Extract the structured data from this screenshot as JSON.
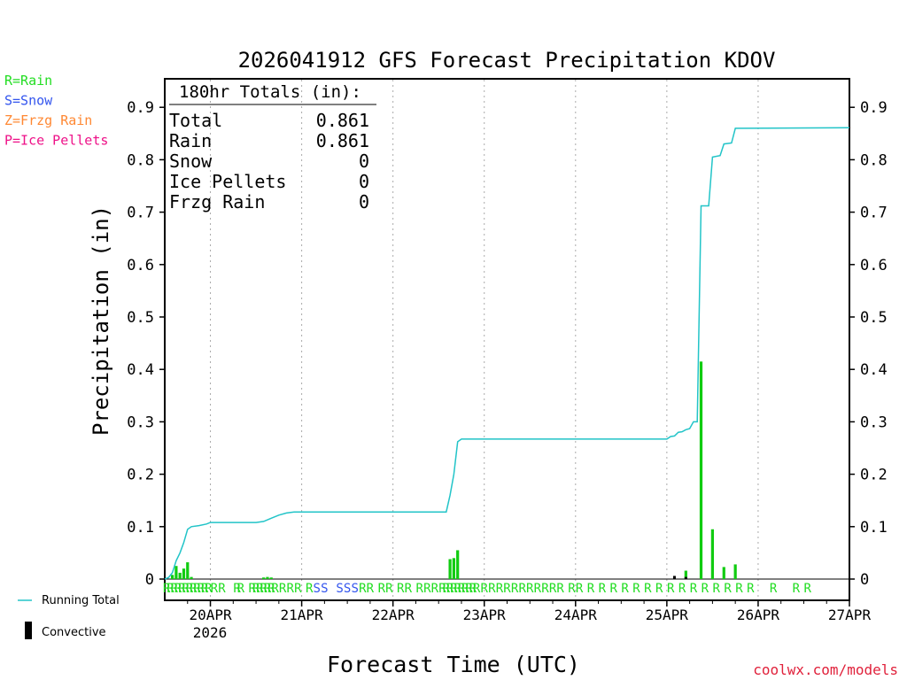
{
  "chart_data": {
    "type": "bar",
    "title": "2026041912 GFS Forecast Precipitation KDOV",
    "ylabel": "Precipitation (in)",
    "xlabel": "Forecast Time (UTC)",
    "ylim": [
      0,
      0.95
    ],
    "y_ticks": [
      "0",
      "0.1",
      "0.2",
      "0.3",
      "0.4",
      "0.5",
      "0.6",
      "0.7",
      "0.8",
      "0.9"
    ],
    "x_range_hours": [
      0,
      180
    ],
    "x_ticks": [
      {
        "label": "20APR",
        "hour": 12
      },
      {
        "label": "21APR",
        "hour": 36
      },
      {
        "label": "22APR",
        "hour": 60
      },
      {
        "label": "23APR",
        "hour": 84
      },
      {
        "label": "24APR",
        "hour": 108
      },
      {
        "label": "25APR",
        "hour": 132
      },
      {
        "label": "26APR",
        "hour": 156
      },
      {
        "label": "27APR",
        "hour": 180
      }
    ],
    "year_label": "2026",
    "type_legend": [
      {
        "text": "R=Rain",
        "color": "#22dd22"
      },
      {
        "text": "S=Snow",
        "color": "#3355ee"
      },
      {
        "text": "Z=Frzg Rain",
        "color": "#ff8833"
      },
      {
        "text": "P=Ice Pellets",
        "color": "#ee1188"
      }
    ],
    "series_legend": {
      "running_total": "Running Total",
      "convective": "Convective"
    },
    "totals_box": {
      "heading": "180hr Totals (in):",
      "rows": [
        {
          "label": "Total",
          "value": "0.861"
        },
        {
          "label": "Rain",
          "value": "0.861"
        },
        {
          "label": "Snow",
          "value": "0"
        },
        {
          "label": "Ice Pellets",
          "value": "0"
        },
        {
          "label": "Frzg Rain",
          "value": "0"
        }
      ]
    },
    "precip_bars": [
      {
        "hour": 2,
        "value": 0.008
      },
      {
        "hour": 3,
        "value": 0.025
      },
      {
        "hour": 4,
        "value": 0.012
      },
      {
        "hour": 5,
        "value": 0.02
      },
      {
        "hour": 6,
        "value": 0.032
      },
      {
        "hour": 7,
        "value": 0.004
      },
      {
        "hour": 26,
        "value": 0.003
      },
      {
        "hour": 27,
        "value": 0.004
      },
      {
        "hour": 28,
        "value": 0.003
      },
      {
        "hour": 75,
        "value": 0.038
      },
      {
        "hour": 76,
        "value": 0.04
      },
      {
        "hour": 77,
        "value": 0.055
      },
      {
        "hour": 137,
        "value": 0.016
      },
      {
        "hour": 141,
        "value": 0.415
      },
      {
        "hour": 144,
        "value": 0.095
      },
      {
        "hour": 147,
        "value": 0.023
      },
      {
        "hour": 150,
        "value": 0.028
      }
    ],
    "convective_bars": [
      {
        "hour": 134,
        "value": 0.006
      },
      {
        "hour": 137,
        "value": 0.004
      }
    ],
    "running_total": [
      [
        0,
        0
      ],
      [
        1,
        0.003
      ],
      [
        2,
        0.012
      ],
      [
        3,
        0.035
      ],
      [
        4,
        0.05
      ],
      [
        5,
        0.07
      ],
      [
        6,
        0.095
      ],
      [
        7,
        0.1
      ],
      [
        9,
        0.102
      ],
      [
        11,
        0.105
      ],
      [
        12,
        0.108
      ],
      [
        24,
        0.108
      ],
      [
        26,
        0.11
      ],
      [
        28,
        0.116
      ],
      [
        30,
        0.122
      ],
      [
        32,
        0.126
      ],
      [
        34,
        0.128
      ],
      [
        36,
        0.128
      ],
      [
        74,
        0.128
      ],
      [
        75,
        0.16
      ],
      [
        76,
        0.2
      ],
      [
        77,
        0.262
      ],
      [
        78,
        0.267
      ],
      [
        132,
        0.267
      ],
      [
        133,
        0.272
      ],
      [
        134,
        0.273
      ],
      [
        135,
        0.28
      ],
      [
        136,
        0.281
      ],
      [
        137,
        0.285
      ],
      [
        138,
        0.287
      ],
      [
        139,
        0.3
      ],
      [
        140,
        0.3
      ],
      [
        141,
        0.712
      ],
      [
        143,
        0.712
      ],
      [
        144,
        0.805
      ],
      [
        146,
        0.808
      ],
      [
        147,
        0.83
      ],
      [
        149,
        0.832
      ],
      [
        150,
        0.86
      ],
      [
        152,
        0.86
      ],
      [
        180,
        0.861
      ]
    ],
    "type_markers": [
      {
        "hour": 0.5,
        "code": "R"
      },
      {
        "hour": 1.5,
        "code": "R"
      },
      {
        "hour": 2.5,
        "code": "R"
      },
      {
        "hour": 3.5,
        "code": "R"
      },
      {
        "hour": 4.5,
        "code": "R"
      },
      {
        "hour": 5.5,
        "code": "R"
      },
      {
        "hour": 6.5,
        "code": "R"
      },
      {
        "hour": 7.5,
        "code": "R"
      },
      {
        "hour": 8.5,
        "code": "R"
      },
      {
        "hour": 9.5,
        "code": "R"
      },
      {
        "hour": 10.5,
        "code": "R"
      },
      {
        "hour": 11.5,
        "code": "R"
      },
      {
        "hour": 13,
        "code": "R"
      },
      {
        "hour": 15,
        "code": "R"
      },
      {
        "hour": 19,
        "code": "R"
      },
      {
        "hour": 20,
        "code": "R"
      },
      {
        "hour": 23,
        "code": "R"
      },
      {
        "hour": 24,
        "code": "R"
      },
      {
        "hour": 25,
        "code": "R"
      },
      {
        "hour": 26,
        "code": "R"
      },
      {
        "hour": 27,
        "code": "R"
      },
      {
        "hour": 28,
        "code": "R"
      },
      {
        "hour": 29,
        "code": "R"
      },
      {
        "hour": 31,
        "code": "R"
      },
      {
        "hour": 33,
        "code": "R"
      },
      {
        "hour": 35,
        "code": "R"
      },
      {
        "hour": 38,
        "code": "R"
      },
      {
        "hour": 40,
        "code": "S"
      },
      {
        "hour": 42,
        "code": "S"
      },
      {
        "hour": 46,
        "code": "S"
      },
      {
        "hour": 48,
        "code": "S"
      },
      {
        "hour": 50,
        "code": "S"
      },
      {
        "hour": 52,
        "code": "R"
      },
      {
        "hour": 54,
        "code": "R"
      },
      {
        "hour": 57,
        "code": "R"
      },
      {
        "hour": 59,
        "code": "R"
      },
      {
        "hour": 62,
        "code": "R"
      },
      {
        "hour": 64,
        "code": "R"
      },
      {
        "hour": 67,
        "code": "R"
      },
      {
        "hour": 69,
        "code": "R"
      },
      {
        "hour": 71,
        "code": "R"
      },
      {
        "hour": 73,
        "code": "R"
      },
      {
        "hour": 74,
        "code": "R"
      },
      {
        "hour": 75,
        "code": "R"
      },
      {
        "hour": 76,
        "code": "R"
      },
      {
        "hour": 77,
        "code": "R"
      },
      {
        "hour": 78,
        "code": "R"
      },
      {
        "hour": 79,
        "code": "R"
      },
      {
        "hour": 80,
        "code": "R"
      },
      {
        "hour": 81,
        "code": "R"
      },
      {
        "hour": 82,
        "code": "R"
      },
      {
        "hour": 84,
        "code": "R"
      },
      {
        "hour": 86,
        "code": "R"
      },
      {
        "hour": 88,
        "code": "R"
      },
      {
        "hour": 90,
        "code": "R"
      },
      {
        "hour": 92,
        "code": "R"
      },
      {
        "hour": 94,
        "code": "R"
      },
      {
        "hour": 96,
        "code": "R"
      },
      {
        "hour": 98,
        "code": "R"
      },
      {
        "hour": 100,
        "code": "R"
      },
      {
        "hour": 102,
        "code": "R"
      },
      {
        "hour": 104,
        "code": "R"
      },
      {
        "hour": 107,
        "code": "R"
      },
      {
        "hour": 109,
        "code": "R"
      },
      {
        "hour": 112,
        "code": "R"
      },
      {
        "hour": 115,
        "code": "R"
      },
      {
        "hour": 118,
        "code": "R"
      },
      {
        "hour": 121,
        "code": "R"
      },
      {
        "hour": 124,
        "code": "R"
      },
      {
        "hour": 127,
        "code": "R"
      },
      {
        "hour": 130,
        "code": "R"
      },
      {
        "hour": 133,
        "code": "R"
      },
      {
        "hour": 136,
        "code": "R"
      },
      {
        "hour": 139,
        "code": "R"
      },
      {
        "hour": 142,
        "code": "R"
      },
      {
        "hour": 145,
        "code": "R"
      },
      {
        "hour": 148,
        "code": "R"
      },
      {
        "hour": 151,
        "code": "R"
      },
      {
        "hour": 154,
        "code": "R"
      },
      {
        "hour": 160,
        "code": "R"
      },
      {
        "hour": 166,
        "code": "R"
      },
      {
        "hour": 169,
        "code": "R"
      }
    ],
    "colors": {
      "running_total": "#22c4c8",
      "precip": "#11cc11",
      "convective": "#000000",
      "rain": "#22dd22",
      "snow": "#3355ee",
      "grid": "#aaaaaa",
      "credit": "#e0213b"
    }
  },
  "credit": "coolwx.com/models"
}
